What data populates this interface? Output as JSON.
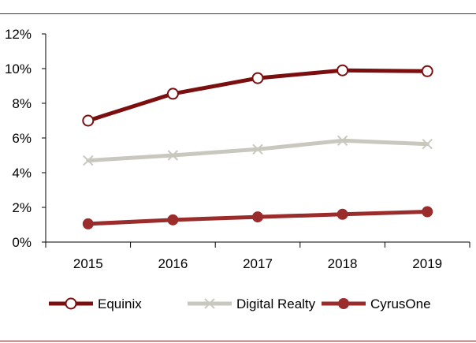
{
  "chart_data": {
    "type": "line",
    "title": "",
    "xlabel": "",
    "ylabel": "",
    "categories": [
      "2015",
      "2016",
      "2017",
      "2018",
      "2019"
    ],
    "ylim": [
      0,
      12
    ],
    "yticks": [
      0,
      2,
      4,
      6,
      8,
      10,
      12
    ],
    "ytick_labels": [
      "0%",
      "2%",
      "4%",
      "6%",
      "8%",
      "10%",
      "12%"
    ],
    "grid": false,
    "legend_position": "bottom",
    "series": [
      {
        "name": "Equinix",
        "values": [
          7.0,
          8.55,
          9.45,
          9.9,
          9.85
        ],
        "color": "#7b0f0f",
        "marker": "circle-open"
      },
      {
        "name": "Digital Realty",
        "values": [
          4.7,
          5.0,
          5.35,
          5.85,
          5.65
        ],
        "color": "#c9c8bf",
        "marker": "x"
      },
      {
        "name": "CyrusOne",
        "values": [
          1.05,
          1.28,
          1.45,
          1.6,
          1.75
        ],
        "color": "#9b2c2c",
        "marker": "circle-filled"
      }
    ]
  }
}
